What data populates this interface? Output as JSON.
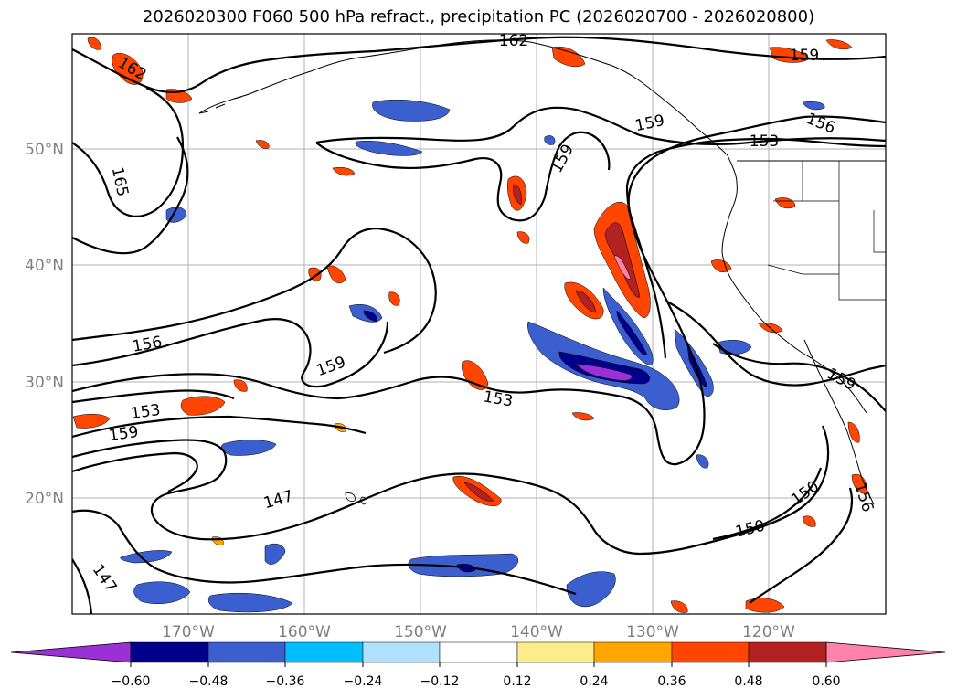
{
  "title": "2026020300 F060 500 hPa refract., precipitation PC (2026020700 - 2026020800)",
  "axes": {
    "lat_labels": [
      "20°N",
      "30°N",
      "40°N",
      "50°N"
    ],
    "lon_labels": [
      "170°W",
      "160°W",
      "150°W",
      "140°W",
      "130°W",
      "120°W"
    ]
  },
  "contour_labels": [
    "162",
    "162",
    "165",
    "159",
    "159",
    "159",
    "159",
    "156",
    "156",
    "153",
    "153",
    "153",
    "159",
    "147",
    "147",
    "150",
    "150",
    "156",
    "159"
  ],
  "colorbar": {
    "tick_labels": [
      "−0.60",
      "−0.48",
      "−0.36",
      "−0.24",
      "−0.12",
      "0.12",
      "0.24",
      "0.36",
      "0.48",
      "0.60"
    ],
    "colors": [
      "#9b30d6",
      "#00008b",
      "#3c5fcf",
      "#00bfff",
      "#b0e2ff",
      "#ffffff",
      "#ffec8b",
      "#ffa500",
      "#ff4500",
      "#b22222",
      "#ff82ab"
    ]
  }
}
